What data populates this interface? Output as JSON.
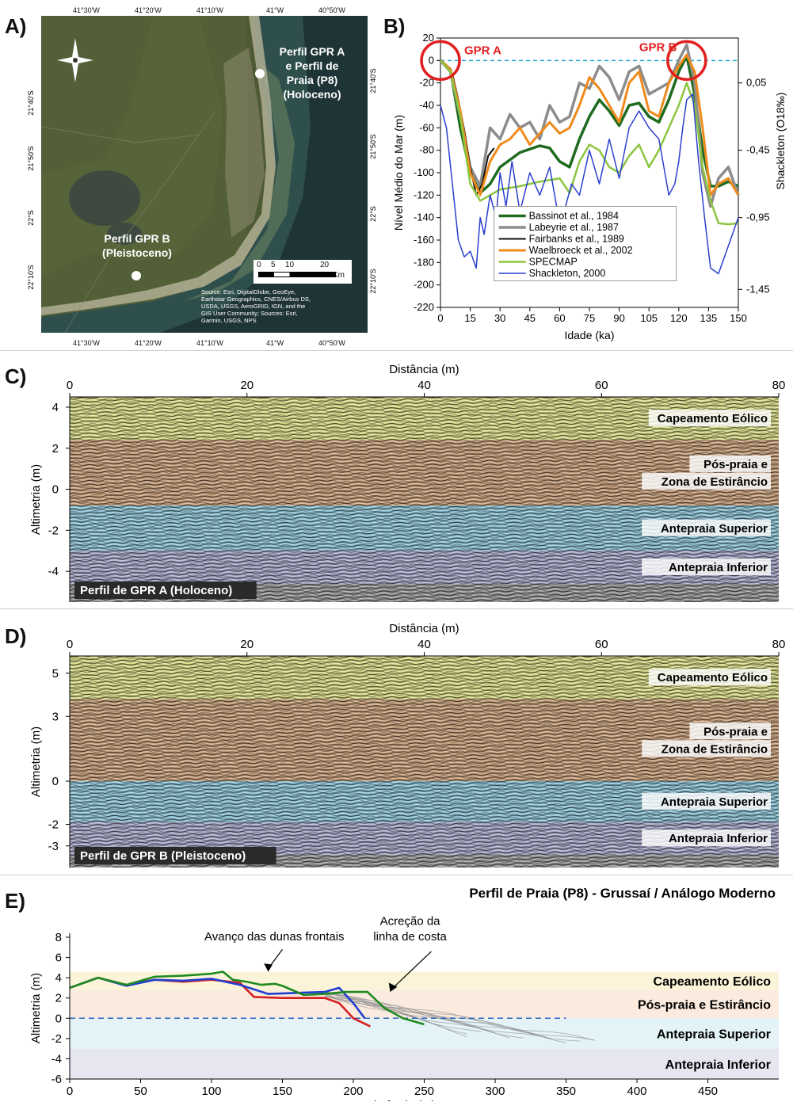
{
  "panels": {
    "a": {
      "letter": "A)"
    },
    "b": {
      "letter": "B)"
    },
    "c": {
      "letter": "C)"
    },
    "d": {
      "letter": "D)"
    },
    "e": {
      "letter": "E)"
    }
  },
  "map": {
    "lon_labels": [
      "41°30'W",
      "41°20'W",
      "41°10'W",
      "41°W",
      "40°50'W"
    ],
    "lat_labels": [
      "21°40'S",
      "21°50'S",
      "22°S",
      "22°10'S"
    ],
    "site_a_label": [
      "Perfil GPR A",
      "e Perfil de",
      "Praia (P8)",
      "(Holoceno)"
    ],
    "site_b_label": [
      "Perfil GPR B",
      "(Pleistoceno)"
    ],
    "scale_ticks": [
      "0",
      "5",
      "10",
      "20"
    ],
    "scale_unit": "Km",
    "source_text": [
      "Source: Esri, DigitalGlobe, GeoEye,",
      "Earthstar Geographics, CNES/Airbus DS,",
      "USDA, USGS, AeroGRID, IGN, and the",
      "GIS User Community; Sources: Esri,",
      "Garmin, USGS, NPS"
    ],
    "colors": {
      "land": "#4e5a34",
      "sea": "#2f4f4c",
      "ocean_dark": "#1c2f33",
      "plume": "#5f7a5e",
      "lagoon": "#3e4a3f"
    }
  },
  "chart_data": [
    {
      "id": "sea-level",
      "type": "line",
      "xlabel": "Idade (ka)",
      "ylabel": "Nível Médio do Mar (m)",
      "y2label": "Shackleton (O18‰)",
      "xlim": [
        0,
        150
      ],
      "ylim": [
        -220,
        20
      ],
      "xticks": [
        0,
        15,
        30,
        45,
        60,
        75,
        90,
        105,
        120,
        135,
        150
      ],
      "yticks": [
        20,
        0,
        -20,
        -40,
        -60,
        -80,
        -100,
        -120,
        -140,
        -160,
        -180,
        -200,
        -220
      ],
      "y2ticks": [
        "0,05",
        "-0,45",
        "-0,95",
        "-1,45"
      ],
      "annotations": [
        "GPR A",
        "GPR B"
      ],
      "highlight_age_ka": [
        0,
        124
      ],
      "legend_position": "bottom-center",
      "series": [
        {
          "name": "Bassinot et al., 1984",
          "color": "#1f6b1f",
          "x": [
            0,
            5,
            10,
            15,
            20,
            25,
            30,
            40,
            50,
            55,
            60,
            65,
            70,
            75,
            80,
            85,
            90,
            95,
            100,
            105,
            110,
            115,
            120,
            124,
            128,
            132,
            136,
            140,
            145,
            150
          ],
          "y": [
            0,
            -8,
            -60,
            -100,
            -118,
            -110,
            -95,
            -82,
            -76,
            -78,
            -90,
            -95,
            -70,
            -50,
            -35,
            -45,
            -58,
            -40,
            -38,
            -50,
            -55,
            -35,
            -10,
            4,
            -30,
            -80,
            -112,
            -112,
            -108,
            -112
          ]
        },
        {
          "name": "Labeyrie et al., 1987",
          "color": "#8c8c8c",
          "x": [
            0,
            5,
            10,
            15,
            20,
            25,
            30,
            35,
            40,
            45,
            50,
            55,
            60,
            65,
            70,
            75,
            80,
            85,
            90,
            95,
            100,
            105,
            110,
            115,
            120,
            124,
            128,
            132,
            136,
            140,
            145,
            150
          ],
          "y": [
            0,
            -10,
            -50,
            -95,
            -112,
            -60,
            -70,
            -48,
            -60,
            -55,
            -70,
            -40,
            -55,
            -50,
            -20,
            -25,
            -5,
            -15,
            -35,
            -10,
            -5,
            -30,
            -25,
            -20,
            0,
            14,
            -20,
            -100,
            -130,
            -105,
            -95,
            -120
          ]
        },
        {
          "name": "Fairbanks et al., 1989",
          "color": "#111111",
          "x": [
            0,
            3,
            6,
            9,
            12,
            15,
            18,
            21,
            24,
            27
          ],
          "y": [
            0,
            -5,
            -12,
            -35,
            -62,
            -95,
            -120,
            -110,
            -85,
            -78
          ]
        },
        {
          "name": "Waelbroeck et al., 2002",
          "color": "#f08a1c",
          "x": [
            0,
            5,
            10,
            15,
            20,
            25,
            30,
            35,
            40,
            45,
            50,
            55,
            60,
            65,
            70,
            75,
            80,
            85,
            90,
            95,
            100,
            105,
            110,
            115,
            120,
            124,
            128,
            132,
            136,
            140,
            145,
            150
          ],
          "y": [
            0,
            -8,
            -45,
            -100,
            -120,
            -90,
            -75,
            -70,
            -60,
            -75,
            -65,
            -55,
            -65,
            -60,
            -40,
            -15,
            -25,
            -40,
            -55,
            -20,
            -10,
            -45,
            -50,
            -20,
            -5,
            5,
            -10,
            -60,
            -120,
            -110,
            -105,
            -120
          ]
        },
        {
          "name": "SPECMAP",
          "color": "#8cc63f",
          "x": [
            0,
            5,
            10,
            15,
            20,
            30,
            40,
            50,
            60,
            65,
            70,
            75,
            80,
            85,
            90,
            95,
            100,
            105,
            110,
            115,
            120,
            124,
            128,
            132,
            136,
            140,
            145,
            150
          ],
          "y": [
            0,
            -10,
            -50,
            -110,
            -125,
            -115,
            -112,
            -108,
            -105,
            -118,
            -90,
            -75,
            -80,
            -95,
            -100,
            -85,
            -75,
            -95,
            -80,
            -60,
            -40,
            -20,
            -40,
            -95,
            -125,
            -145,
            -146,
            -145
          ]
        },
        {
          "name": "Shackleton, 2000",
          "color": "#2b3fcf",
          "x": [
            0,
            3,
            6,
            9,
            12,
            15,
            18,
            20,
            22,
            25,
            28,
            30,
            33,
            36,
            40,
            45,
            50,
            55,
            60,
            63,
            66,
            70,
            75,
            80,
            85,
            90,
            95,
            100,
            105,
            110,
            115,
            118,
            120,
            122,
            124,
            127,
            130,
            133,
            136,
            140,
            145,
            150
          ],
          "y": [
            -40,
            -60,
            -110,
            -160,
            -175,
            -170,
            -185,
            -140,
            -155,
            -120,
            -140,
            -100,
            -130,
            -90,
            -135,
            -100,
            -120,
            -95,
            -145,
            -130,
            -110,
            -120,
            -80,
            -110,
            -70,
            -105,
            -60,
            -45,
            -60,
            -70,
            -120,
            -110,
            -90,
            -60,
            -35,
            -30,
            -90,
            -140,
            -185,
            -190,
            -165,
            -140
          ]
        }
      ]
    },
    {
      "id": "gpr-a",
      "type": "area",
      "xlabel": "Distância (m)",
      "ylabel": "Altimetria (m)",
      "xlim": [
        0,
        80
      ],
      "ylim": [
        -5.5,
        4.5
      ],
      "xticks": [
        0,
        20,
        40,
        60,
        80
      ],
      "yticks": [
        4,
        2,
        0,
        -2,
        -4
      ],
      "caption": "Perfil de GPR A (Holoceno)",
      "layers": [
        {
          "name": "Capeamento Eólico",
          "top": 4.5,
          "bottom": 2.4,
          "color": "#d9dc8a"
        },
        {
          "name_lines": [
            "Pós-praia e",
            "Zona de Estirâncio"
          ],
          "top": 2.4,
          "bottom": -0.8,
          "color": "#c9a17d"
        },
        {
          "name": "Antepraia Superior",
          "top": -0.8,
          "bottom": -3.0,
          "color": "#8fc4d6"
        },
        {
          "name": "Antepraia Inferior",
          "top": -3.0,
          "bottom": -4.6,
          "color": "#a8a9c9"
        }
      ]
    },
    {
      "id": "gpr-b",
      "type": "area",
      "xlabel": "Distância (m)",
      "ylabel": "Altimetria (m)",
      "xlim": [
        0,
        80
      ],
      "ylim": [
        -4,
        5.8
      ],
      "xticks": [
        0,
        20,
        40,
        60,
        80
      ],
      "ytick_values": [
        5,
        3,
        0,
        -2,
        -3
      ],
      "yticks": [
        5,
        3,
        0,
        -2,
        -3
      ],
      "caption": "Perfil de GPR B (Pleistoceno)",
      "layers": [
        {
          "name": "Capeamento Eólico",
          "top": 5.8,
          "bottom": 3.8,
          "color": "#d9dc8a"
        },
        {
          "name_lines": [
            "Pós-praia e",
            "Zona de Estirâncio"
          ],
          "top": 3.8,
          "bottom": 0.0,
          "color": "#c9a17d"
        },
        {
          "name": "Antepraia Superior",
          "top": 0.0,
          "bottom": -1.9,
          "color": "#8fc4d6"
        },
        {
          "name": "Antepraia Inferior",
          "top": -1.9,
          "bottom": -3.4,
          "color": "#a8a9c9"
        }
      ]
    },
    {
      "id": "beach-profile",
      "type": "line",
      "title": "Perfil de Praia (P8) - Grussaí / Análogo Moderno",
      "xlabel": "Distância (m)",
      "ylabel": "Altimetria (m)",
      "xlim": [
        0,
        500
      ],
      "ylim": [
        -6,
        8
      ],
      "xticks": [
        0,
        50,
        100,
        150,
        200,
        250,
        300,
        350,
        400,
        450
      ],
      "yticks": [
        8,
        6,
        4,
        2,
        0,
        -2,
        -4,
        -6
      ],
      "annotations": [
        "Avanço das dunas frontais",
        [
          "Acreção da",
          "linha de costa"
        ]
      ],
      "zones": [
        {
          "name": "Capeamento Eólico",
          "top": 4.6,
          "bottom": 2.8,
          "color": "#fbf4d8"
        },
        {
          "name": "Pós-praia e Estirâncio",
          "top": 2.8,
          "bottom": 0.0,
          "color": "#fbebdf"
        },
        {
          "name": "Antepraia Superior",
          "top": 0.0,
          "bottom": -3.0,
          "color": "#e3f3f7"
        },
        {
          "name": "Antepraia Inferior",
          "top": -3.0,
          "bottom": -6.0,
          "color": "#e6e6f1"
        }
      ],
      "mean_sea_level": 0,
      "series": [
        {
          "color": "#d42020",
          "x": [
            0,
            20,
            40,
            60,
            80,
            100,
            120,
            130,
            150,
            180,
            190,
            200,
            212
          ],
          "y": [
            3.0,
            4.0,
            3.3,
            3.8,
            3.6,
            3.8,
            3.5,
            2.1,
            2.0,
            2.0,
            1.5,
            0.0,
            -0.8
          ]
        },
        {
          "color": "#2040d0",
          "x": [
            0,
            20,
            40,
            60,
            80,
            100,
            120,
            140,
            160,
            180,
            190,
            200,
            208
          ],
          "y": [
            3.0,
            4.0,
            3.2,
            3.8,
            3.7,
            3.9,
            3.3,
            2.4,
            2.5,
            2.6,
            3.0,
            1.5,
            0.0
          ]
        },
        {
          "color": "#1f8a1f",
          "x": [
            0,
            20,
            40,
            60,
            80,
            100,
            108,
            115,
            125,
            135,
            145,
            150,
            165,
            180,
            195,
            210,
            222,
            235,
            250
          ],
          "y": [
            3.0,
            4.0,
            3.3,
            4.1,
            4.2,
            4.4,
            4.6,
            3.8,
            3.6,
            3.3,
            3.4,
            3.2,
            2.3,
            2.4,
            2.6,
            2.6,
            1.0,
            0.0,
            -0.6
          ]
        }
      ],
      "survey_lines_count": 12
    }
  ]
}
